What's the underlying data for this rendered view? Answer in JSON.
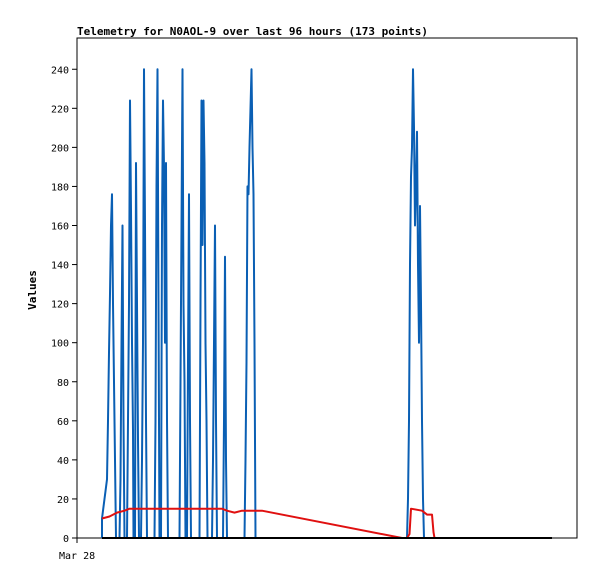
{
  "chart_data": {
    "type": "line",
    "title": "Telemetry for N0AOL-9 over last 96 hours (173 points)",
    "xlabel": "",
    "ylabel": "Values",
    "x_tick_labels": [
      "Mar 28"
    ],
    "y_ticks": [
      0,
      20,
      40,
      60,
      80,
      100,
      120,
      140,
      160,
      180,
      200,
      220,
      240
    ],
    "ylim": [
      0,
      256
    ],
    "grid": false,
    "legend": "none",
    "colors": {
      "blue": "#0a5fb4",
      "red": "#e01010",
      "black": "#000000",
      "axis": "#000000"
    },
    "series": [
      {
        "values": [
          [
            0.05,
            0
          ],
          [
            0.05,
            10
          ],
          [
            0.06,
            30
          ],
          [
            0.062,
            60
          ],
          [
            0.064,
            95
          ],
          [
            0.066,
            125
          ],
          [
            0.068,
            160
          ],
          [
            0.07,
            176
          ],
          [
            0.072,
            120
          ],
          [
            0.074,
            80
          ],
          [
            0.076,
            40
          ],
          [
            0.078,
            0
          ],
          [
            0.085,
            0
          ],
          [
            0.087,
            30
          ],
          [
            0.089,
            100
          ],
          [
            0.091,
            160
          ],
          [
            0.093,
            60
          ],
          [
            0.095,
            0
          ],
          [
            0.1,
            0
          ],
          [
            0.102,
            60
          ],
          [
            0.104,
            120
          ],
          [
            0.106,
            224
          ],
          [
            0.108,
            168
          ],
          [
            0.11,
            100
          ],
          [
            0.112,
            55
          ],
          [
            0.113,
            0
          ],
          [
            0.116,
            0
          ],
          [
            0.118,
            192
          ],
          [
            0.12,
            120
          ],
          [
            0.122,
            50
          ],
          [
            0.124,
            0
          ],
          [
            0.128,
            0
          ],
          [
            0.13,
            40
          ],
          [
            0.132,
            100
          ],
          [
            0.134,
            240
          ],
          [
            0.136,
            160
          ],
          [
            0.138,
            60
          ],
          [
            0.14,
            0
          ],
          [
            0.155,
            0
          ],
          [
            0.157,
            60
          ],
          [
            0.159,
            180
          ],
          [
            0.161,
            240
          ],
          [
            0.163,
            120
          ],
          [
            0.165,
            0
          ],
          [
            0.168,
            0
          ],
          [
            0.17,
            160
          ],
          [
            0.172,
            224
          ],
          [
            0.174,
            190
          ],
          [
            0.176,
            100
          ],
          [
            0.178,
            192
          ],
          [
            0.18,
            60
          ],
          [
            0.182,
            0
          ],
          [
            0.205,
            0
          ],
          [
            0.207,
            80
          ],
          [
            0.209,
            160
          ],
          [
            0.211,
            240
          ],
          [
            0.213,
            120
          ],
          [
            0.215,
            80
          ],
          [
            0.217,
            0
          ],
          [
            0.22,
            0
          ],
          [
            0.222,
            90
          ],
          [
            0.224,
            176
          ],
          [
            0.226,
            60
          ],
          [
            0.228,
            0
          ],
          [
            0.245,
            0
          ],
          [
            0.247,
            120
          ],
          [
            0.249,
            224
          ],
          [
            0.251,
            150
          ],
          [
            0.253,
            224
          ],
          [
            0.255,
            192
          ],
          [
            0.257,
            100
          ],
          [
            0.259,
            60
          ],
          [
            0.261,
            0
          ],
          [
            0.27,
            0
          ],
          [
            0.272,
            40
          ],
          [
            0.274,
            100
          ],
          [
            0.276,
            160
          ],
          [
            0.278,
            60
          ],
          [
            0.28,
            0
          ],
          [
            0.292,
            0
          ],
          [
            0.294,
            60
          ],
          [
            0.296,
            144
          ],
          [
            0.298,
            40
          ],
          [
            0.3,
            0
          ],
          [
            0.335,
            0
          ],
          [
            0.337,
            40
          ],
          [
            0.339,
            90
          ],
          [
            0.341,
            180
          ],
          [
            0.343,
            176
          ],
          [
            0.345,
            200
          ],
          [
            0.347,
            220
          ],
          [
            0.349,
            240
          ],
          [
            0.351,
            200
          ],
          [
            0.353,
            176
          ],
          [
            0.355,
            100
          ],
          [
            0.357,
            0
          ],
          [
            0.66,
            0
          ],
          [
            0.662,
            20
          ],
          [
            0.664,
            60
          ],
          [
            0.666,
            140
          ],
          [
            0.668,
            185
          ],
          [
            0.67,
            200
          ],
          [
            0.672,
            240
          ],
          [
            0.674,
            210
          ],
          [
            0.676,
            160
          ],
          [
            0.678,
            180
          ],
          [
            0.68,
            208
          ],
          [
            0.682,
            140
          ],
          [
            0.684,
            100
          ],
          [
            0.686,
            170
          ],
          [
            0.688,
            120
          ],
          [
            0.69,
            60
          ],
          [
            0.692,
            20
          ],
          [
            0.694,
            0
          ]
        ]
      },
      {
        "values": [
          [
            0.05,
            10
          ],
          [
            0.065,
            11
          ],
          [
            0.08,
            13
          ],
          [
            0.095,
            14
          ],
          [
            0.105,
            15
          ],
          [
            0.112,
            15
          ],
          [
            0.15,
            15
          ],
          [
            0.2,
            15
          ],
          [
            0.25,
            15
          ],
          [
            0.29,
            15
          ],
          [
            0.3,
            14
          ],
          [
            0.315,
            13
          ],
          [
            0.33,
            14
          ],
          [
            0.37,
            14
          ],
          [
            0.65,
            0
          ],
          [
            0.66,
            0
          ],
          [
            0.665,
            2
          ],
          [
            0.668,
            15
          ],
          [
            0.69,
            14
          ],
          [
            0.7,
            12
          ],
          [
            0.71,
            12
          ],
          [
            0.713,
            3
          ],
          [
            0.715,
            0
          ]
        ]
      },
      {
        "values": [
          [
            0.05,
            0
          ],
          [
            0.95,
            0
          ]
        ]
      }
    ]
  }
}
